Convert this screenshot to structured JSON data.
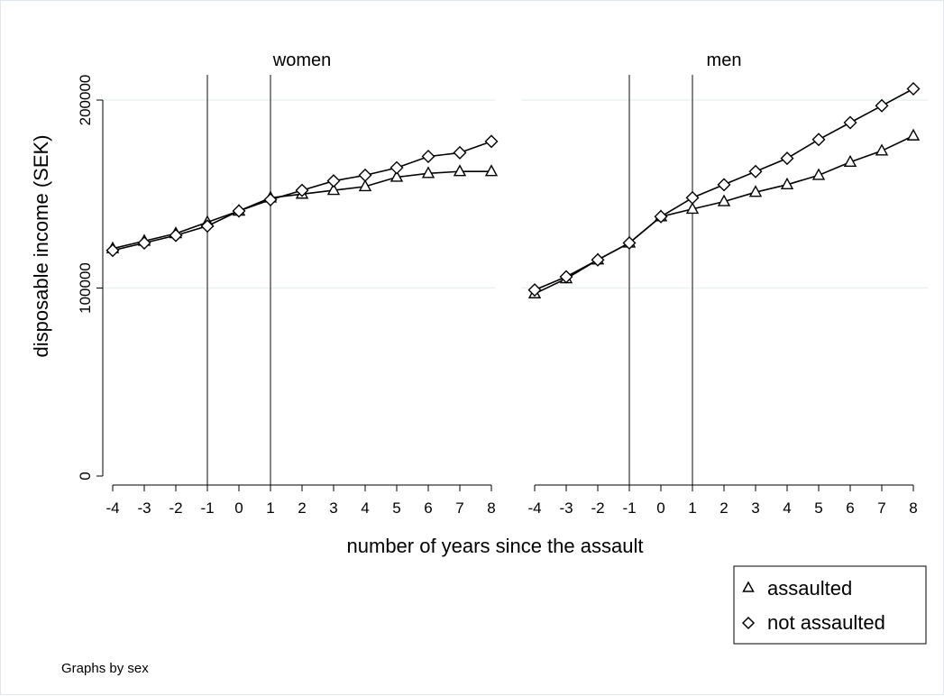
{
  "chart_data": {
    "type": "line",
    "panels": [
      {
        "title": "women",
        "series": [
          {
            "name": "assaulted",
            "marker": "triangle",
            "x": [
              -4,
              -3,
              -2,
              -1,
              0,
              1,
              2,
              3,
              4,
              5,
              6,
              7,
              8
            ],
            "y": [
              121000,
              125000,
              129000,
              135000,
              141000,
              148000,
              150000,
              152000,
              154000,
              159000,
              161000,
              162000,
              162000
            ]
          },
          {
            "name": "not assaulted",
            "marker": "diamond",
            "x": [
              -4,
              -3,
              -2,
              -1,
              0,
              1,
              2,
              3,
              4,
              5,
              6,
              7,
              8
            ],
            "y": [
              120000,
              124000,
              128000,
              133000,
              141000,
              147000,
              152000,
              157000,
              160000,
              164000,
              170000,
              172000,
              178000
            ]
          }
        ]
      },
      {
        "title": "men",
        "series": [
          {
            "name": "assaulted",
            "marker": "triangle",
            "x": [
              -4,
              -3,
              -2,
              -1,
              0,
              1,
              2,
              3,
              4,
              5,
              6,
              7,
              8
            ],
            "y": [
              97000,
              105000,
              115000,
              124000,
              138000,
              142000,
              146000,
              151000,
              155000,
              160000,
              167000,
              173000,
              181000
            ]
          },
          {
            "name": "not assaulted",
            "marker": "diamond",
            "x": [
              -4,
              -3,
              -2,
              -1,
              0,
              1,
              2,
              3,
              4,
              5,
              6,
              7,
              8
            ],
            "y": [
              99000,
              106000,
              115000,
              124000,
              138000,
              148000,
              155000,
              162000,
              169000,
              179000,
              188000,
              197000,
              206000
            ]
          }
        ]
      }
    ],
    "reference_lines_x": [
      -1,
      1
    ],
    "xlabel": "number of years since the assault",
    "ylabel": "disposable income (SEK)",
    "x_ticks": [
      -4,
      -3,
      -2,
      -1,
      0,
      1,
      2,
      3,
      4,
      5,
      6,
      7,
      8
    ],
    "y_ticks": [
      0,
      100000,
      200000
    ],
    "xlim": [
      -4,
      8
    ],
    "ylim": [
      0,
      200000
    ],
    "grid": "horizontal",
    "legend": {
      "position": "bottom-right",
      "entries": [
        {
          "label": "assaulted",
          "marker": "triangle"
        },
        {
          "label": "not assaulted",
          "marker": "diamond"
        }
      ]
    },
    "note": "Graphs by sex",
    "colors": {
      "line": "#000000",
      "grid": "#eaf0f2",
      "axis": "#000000",
      "refline": "#444444"
    }
  }
}
